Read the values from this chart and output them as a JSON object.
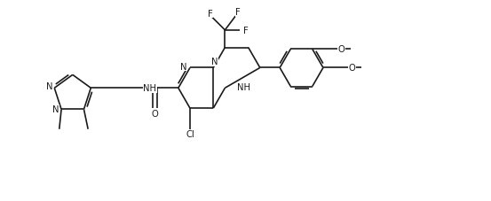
{
  "line_color": "#1a1a1a",
  "bg_color": "#ffffff",
  "figsize": [
    5.53,
    2.28
  ],
  "dpi": 100,
  "font_size": 7.2,
  "bond_width": 1.2,
  "xlim": [
    0,
    11
  ],
  "ylim": [
    0,
    4.8
  ]
}
